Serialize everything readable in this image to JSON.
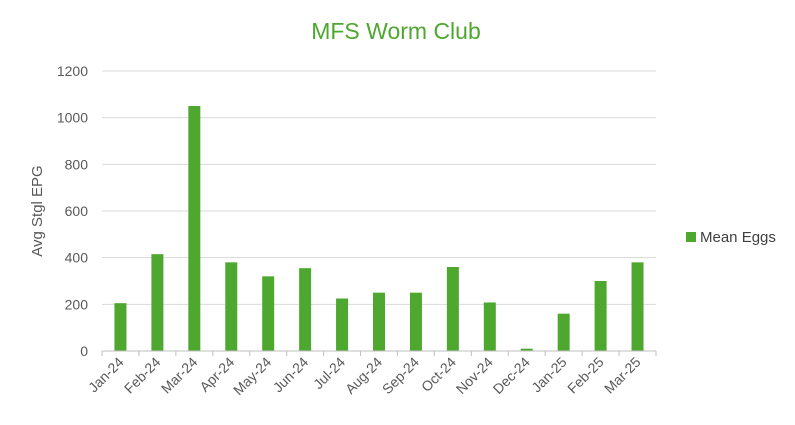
{
  "chart_data": {
    "type": "bar",
    "title": "MFS Worm Club",
    "xlabel": "",
    "ylabel": "Avg Stgl EPG",
    "categories": [
      "Jan-24",
      "Feb-24",
      "Mar-24",
      "Apr-24",
      "May-24",
      "Jun-24",
      "Jul-24",
      "Aug-24",
      "Sep-24",
      "Oct-24",
      "Nov-24",
      "Dec-24",
      "Jan-25",
      "Feb-25",
      "Mar-25"
    ],
    "series": [
      {
        "name": "Mean Eggs",
        "values": [
          205,
          415,
          1050,
          380,
          320,
          355,
          225,
          250,
          250,
          360,
          208,
          10,
          160,
          300,
          380
        ]
      }
    ],
    "ylim": [
      0,
      1200
    ],
    "yticks": [
      0,
      200,
      400,
      600,
      800,
      1000,
      1200
    ],
    "grid": true,
    "legend_position": "right",
    "colors": {
      "bar": "#4EA72E",
      "title": "#4EA72E",
      "grid": "#D9D9D9",
      "axis": "#BFBFBF"
    }
  }
}
